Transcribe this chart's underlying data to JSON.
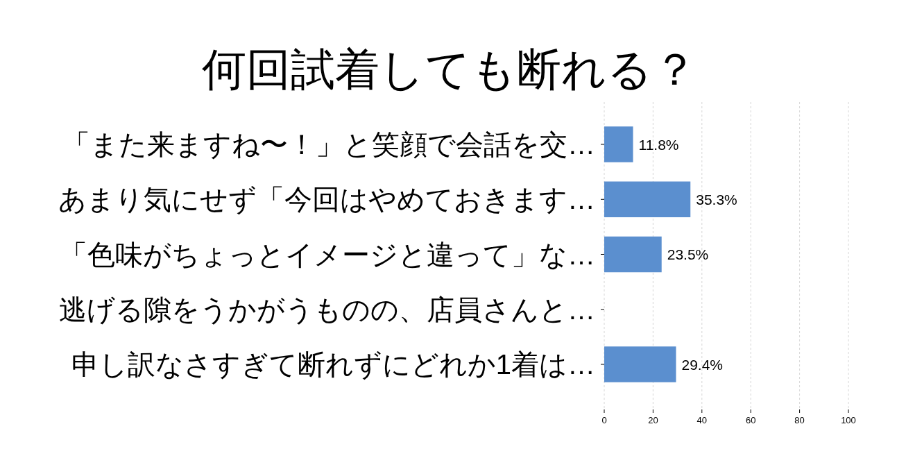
{
  "chart_data": {
    "type": "bar",
    "orientation": "horizontal",
    "title": "何回試着しても断れる？",
    "categories": [
      "「また来ますね〜！」と笑顔で会話を交…",
      "あまり気にせず「今回はやめておきます…",
      "「色味がちょっとイメージと違って」な…",
      "逃げる隙をうかがうものの、店員さんと…",
      "申し訳なさすぎて断れずにどれか1着は…"
    ],
    "values": [
      11.8,
      35.3,
      23.5,
      0,
      29.4
    ],
    "value_labels": [
      "11.8%",
      "35.3%",
      "23.5%",
      null,
      "29.4%"
    ],
    "color": "#5b8fcf",
    "xlim": [
      0,
      100
    ],
    "xticks": [
      0,
      20,
      40,
      60,
      80,
      100
    ],
    "grid": "x"
  }
}
